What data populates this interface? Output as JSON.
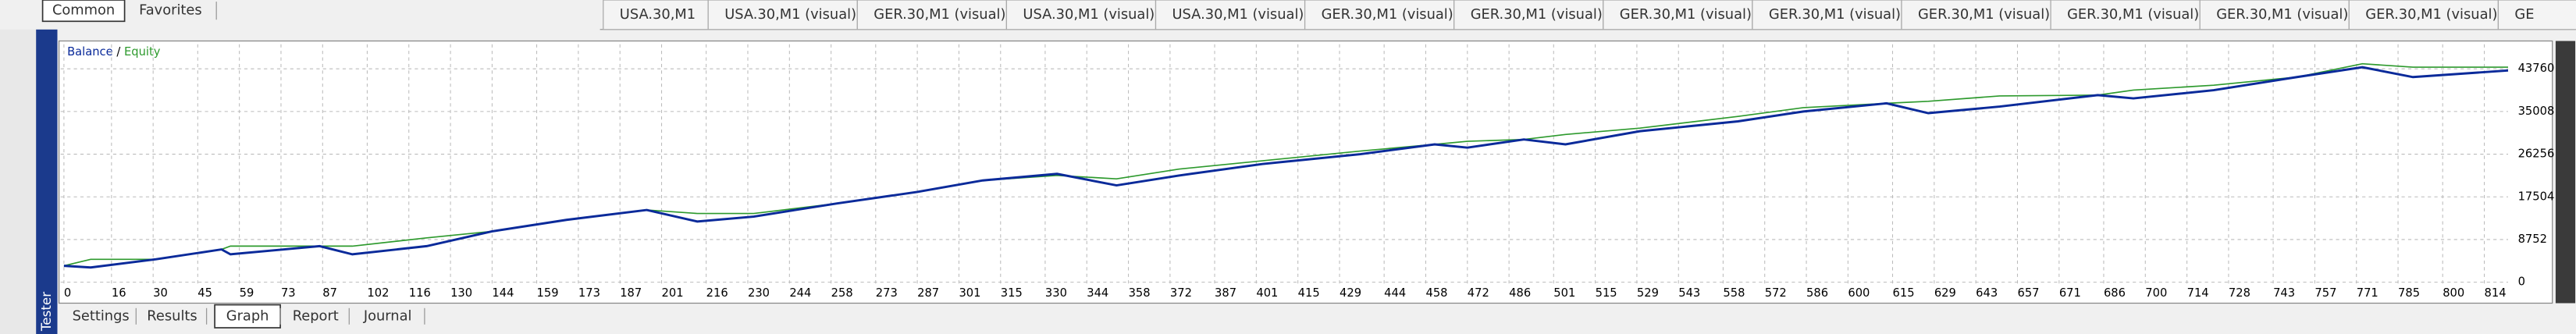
{
  "top_tabs": [
    "Common",
    "Favorites"
  ],
  "chart_tabs": [
    "USA.30,M1",
    "USA.30,M1 (visual)",
    "GER.30,M1 (visual)",
    "USA.30,M1 (visual)",
    "USA.30,M1 (visual)",
    "GER.30,M1 (visual)",
    "GER.30,M1 (visual)",
    "GER.30,M1 (visual)",
    "GER.30,M1 (visual)",
    "GER.30,M1 (visual)",
    "GER.30,M1 (visual)",
    "GER.30,M1 (visual)",
    "GER.30,M1 (visual)",
    "GE"
  ],
  "side_label": "Tester",
  "bottom_tabs": [
    "Settings",
    "Results",
    "Graph",
    "Report",
    "Journal"
  ],
  "chart_data": {
    "type": "line",
    "x": [
      0,
      9,
      31,
      53,
      56,
      86,
      97,
      122,
      144,
      169,
      196,
      213,
      232,
      260,
      287,
      309,
      334,
      354,
      375,
      403,
      436,
      461,
      472,
      491,
      505,
      530,
      563,
      585,
      613,
      627,
      651,
      684,
      696,
      723,
      751,
      773,
      790,
      822
    ],
    "series": [
      {
        "name": "Balance",
        "color": "#0a2a9a",
        "values": [
          3370,
          3030,
          4710,
          6730,
          5720,
          7400,
          5720,
          7400,
          10430,
          12790,
          14810,
          12450,
          13460,
          16160,
          18510,
          20870,
          22220,
          19860,
          21880,
          24240,
          26260,
          28270,
          27600,
          29280,
          28270,
          30970,
          32990,
          35010,
          36690,
          34670,
          36020,
          38370,
          37700,
          39380,
          42070,
          44090,
          42070,
          43420
        ]
      },
      {
        "name": "Equity",
        "color": "#2e9a2e",
        "values": [
          3370,
          4700,
          4700,
          6730,
          7400,
          7400,
          7400,
          9100,
          10430,
          12790,
          14810,
          14100,
          14100,
          16160,
          18510,
          20870,
          21900,
          21200,
          23200,
          24900,
          26900,
          28270,
          28900,
          29280,
          30300,
          31600,
          34000,
          35800,
          36690,
          37100,
          38200,
          38370,
          39400,
          40400,
          42070,
          44800,
          44100,
          44100
        ]
      }
    ],
    "xlim": [
      0,
      822
    ],
    "xticks": [
      0,
      16,
      30,
      45,
      59,
      73,
      87,
      102,
      116,
      130,
      144,
      159,
      173,
      187,
      201,
      216,
      230,
      244,
      258,
      273,
      287,
      301,
      315,
      330,
      344,
      358,
      372,
      387,
      401,
      415,
      429,
      444,
      458,
      472,
      486,
      501,
      515,
      529,
      543,
      558,
      572,
      586,
      600,
      615,
      629,
      643,
      657,
      671,
      686,
      700,
      714,
      728,
      743,
      757,
      771,
      785,
      800,
      814
    ],
    "ylim": [
      -600,
      48800
    ],
    "yticks": [
      0,
      8752,
      17504,
      26256,
      35008,
      43760
    ],
    "grid": true
  }
}
